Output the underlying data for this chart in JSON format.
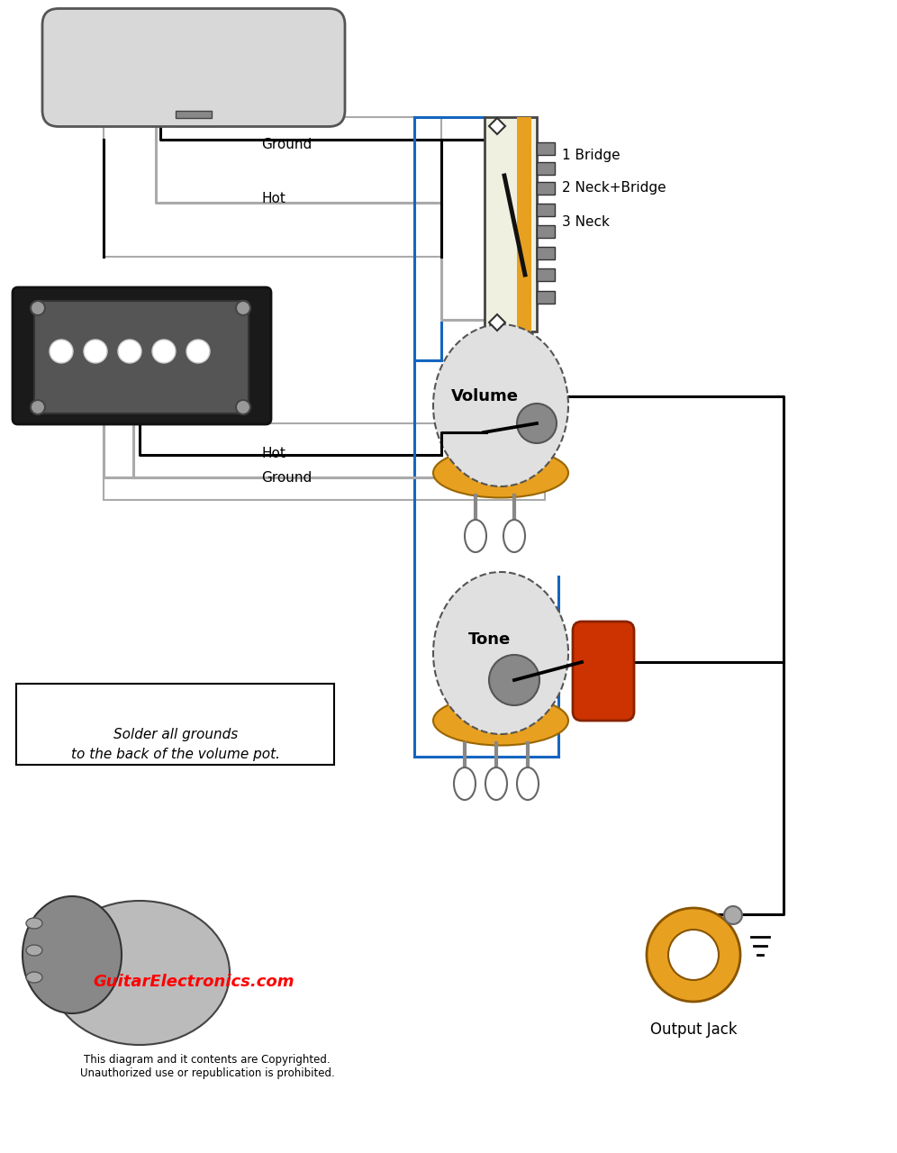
{
  "bg_color": "#ffffff",
  "wire_black": "#000000",
  "wire_blue": "#1565c0",
  "wire_gray": "#aaaaaa",
  "pot_body_color": "#e0e0e0",
  "pot_base_color": "#e8a020",
  "cap_color": "#cc3300",
  "switch_body_color": "#f0f0e0",
  "switch_wood_color": "#e8a020",
  "jack_color": "#e8a020",
  "neck_pu_color": "#d8d8d8",
  "bridge_pu_black": "#1a1a1a",
  "bridge_pu_gray": "#555555",
  "volume_label": "Volume",
  "tone_label": "Tone",
  "output_jack_label": "Output Jack",
  "switch_label_1": "1 Bridge",
  "switch_label_2": "2 Neck+Bridge",
  "switch_label_3": "3 Neck",
  "ground_text": "Ground",
  "hot_text": "Hot",
  "solder_note": "Solder all grounds\nto the back of the volume pot.",
  "copyright_note": "This diagram and it contents are Copyrighted.\nUnauthorized use or republication is prohibited.",
  "site_label": "GuitarElectronics.com",
  "lug_color": "#c0c0c0",
  "wiper_color": "#888888"
}
